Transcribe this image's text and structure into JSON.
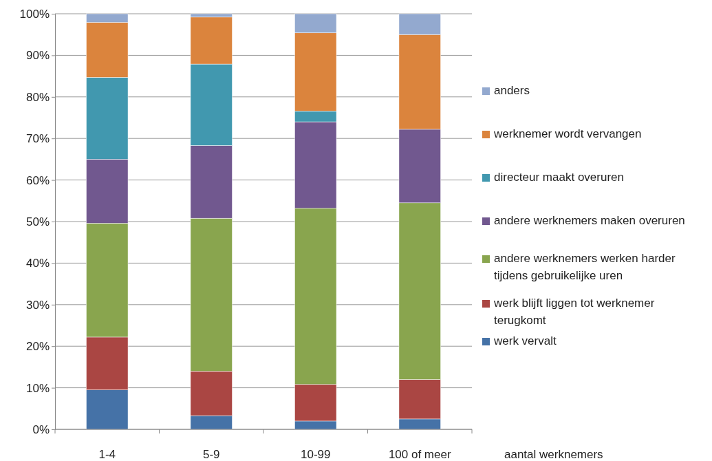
{
  "chart_data": {
    "type": "bar",
    "stacked": true,
    "xlabel": "aantal werknemers",
    "categories": [
      "1-4",
      "5-9",
      "10-99",
      "100 of meer"
    ],
    "series": [
      {
        "name": "werk vervalt",
        "color": "#4572a7",
        "values": [
          9.5,
          3.3,
          2.0,
          2.5
        ]
      },
      {
        "name": "werk blijft liggen tot werknemer terugkomt",
        "color": "#aa4643",
        "values": [
          12.7,
          10.7,
          8.8,
          9.5
        ]
      },
      {
        "name": "andere werknemers werken harder tijdens gebruikelijke uren",
        "color": "#89a54e",
        "values": [
          27.4,
          36.8,
          42.4,
          42.5
        ]
      },
      {
        "name": "andere werknemers maken overuren",
        "color": "#71588f",
        "values": [
          15.4,
          17.5,
          20.8,
          17.7
        ]
      },
      {
        "name": "directeur maakt overuren",
        "color": "#4198af",
        "values": [
          19.7,
          19.6,
          2.6,
          0
        ]
      },
      {
        "name": "werknemer wordt vervangen",
        "color": "#db843d",
        "values": [
          13.2,
          11.3,
          18.8,
          22.8
        ]
      },
      {
        "name": "anders",
        "color": "#93a9cf",
        "values": [
          2.1,
          0.8,
          4.6,
          5.0
        ]
      }
    ],
    "ylim": [
      0,
      100
    ],
    "yticks": [
      {
        "value": 0,
        "label": "0%"
      },
      {
        "value": 10,
        "label": "10%"
      },
      {
        "value": 20,
        "label": "20%"
      },
      {
        "value": 30,
        "label": "30%"
      },
      {
        "value": 40,
        "label": "40%"
      },
      {
        "value": 50,
        "label": "50%"
      },
      {
        "value": 60,
        "label": "60%"
      },
      {
        "value": 70,
        "label": "70%"
      },
      {
        "value": 80,
        "label": "80%"
      },
      {
        "value": 90,
        "label": "90%"
      },
      {
        "value": 100,
        "label": "100%"
      }
    ],
    "grid": "y",
    "legend": "right"
  }
}
